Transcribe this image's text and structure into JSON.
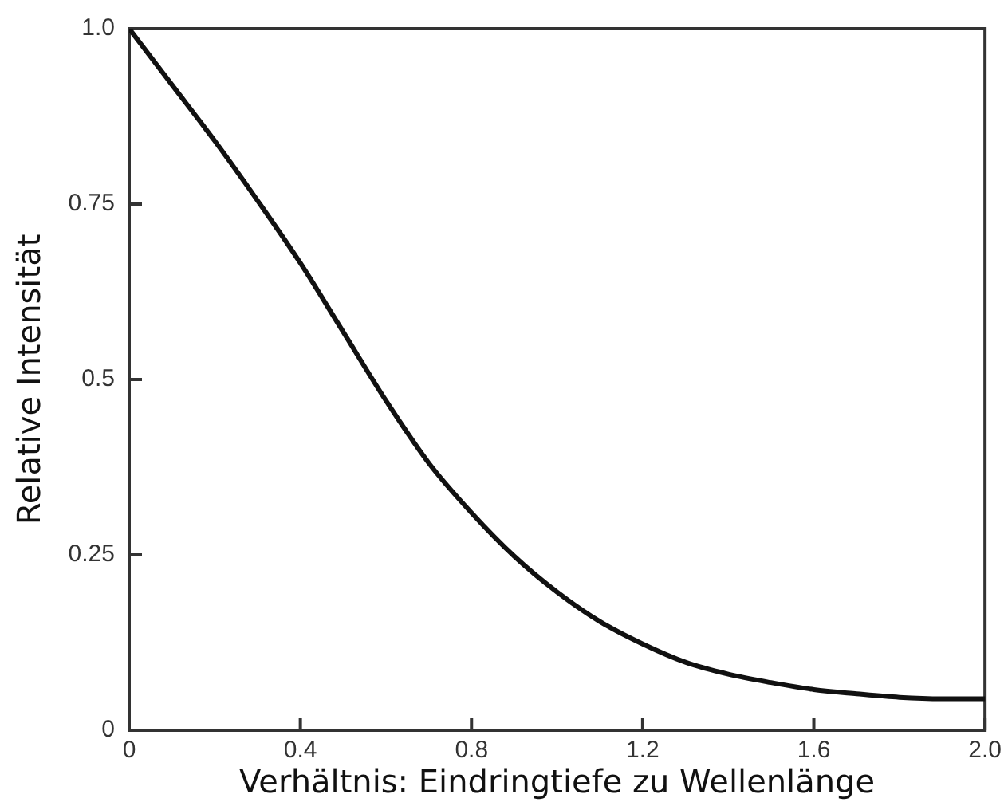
{
  "chart_data": {
    "type": "line",
    "xlabel": "Verhältnis: Eindringtiefe zu Wellenlänge",
    "ylabel": "Relative Intensität",
    "x": [
      0,
      0.1,
      0.2,
      0.3,
      0.4,
      0.5,
      0.6,
      0.7,
      0.8,
      0.9,
      1.0,
      1.1,
      1.2,
      1.3,
      1.4,
      1.5,
      1.6,
      1.7,
      1.8,
      1.9,
      2.0
    ],
    "series": [
      {
        "color": "#111111",
        "values": [
          1.0,
          0.92,
          0.84,
          0.755,
          0.666,
          0.568,
          0.47,
          0.381,
          0.31,
          0.248,
          0.197,
          0.155,
          0.123,
          0.097,
          0.08,
          0.068,
          0.058,
          0.052,
          0.047,
          0.045,
          0.045
        ]
      }
    ],
    "xlim": [
      0,
      2
    ],
    "ylim": [
      0,
      1
    ],
    "xticks": [
      0,
      0.4,
      0.8,
      1.2,
      1.6,
      {
        "value": 2,
        "label": "2.0"
      }
    ],
    "yticks": [
      0,
      0.25,
      0.5,
      0.75,
      {
        "value": 1,
        "label": "1.0"
      }
    ]
  }
}
